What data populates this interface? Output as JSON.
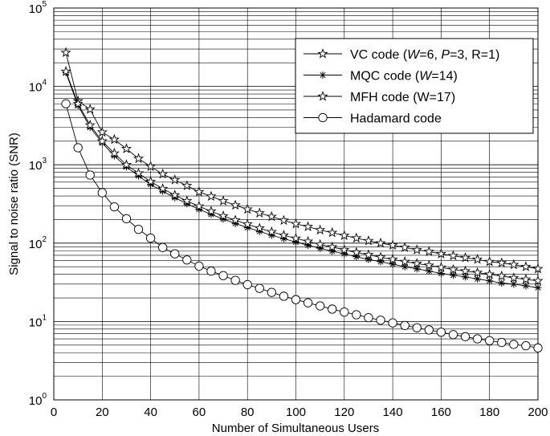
{
  "chart_data": {
    "type": "line",
    "title": "",
    "xlabel": "Number of Simultaneous Users",
    "ylabel": "Signal to noise ratio (SNR)",
    "xlim": [
      0,
      200
    ],
    "ylim": [
      1,
      100000
    ],
    "yscale": "log",
    "grid": true,
    "legend_position": "top-right",
    "x_ticks": [
      {
        "value": 0,
        "label": "0"
      },
      {
        "value": 20,
        "label": "20"
      },
      {
        "value": 40,
        "label": "40"
      },
      {
        "value": 60,
        "label": "60"
      },
      {
        "value": 80,
        "label": "80"
      },
      {
        "value": 100,
        "label": "100"
      },
      {
        "value": 120,
        "label": "120"
      },
      {
        "value": 140,
        "label": "140"
      },
      {
        "value": 160,
        "label": "160"
      },
      {
        "value": 180,
        "label": "180"
      },
      {
        "value": 200,
        "label": "200"
      }
    ],
    "y_ticks": [
      {
        "value": 1,
        "base": "10",
        "exp": "0"
      },
      {
        "value": 10,
        "base": "10",
        "exp": "1"
      },
      {
        "value": 100,
        "base": "10",
        "exp": "2"
      },
      {
        "value": 1000,
        "base": "10",
        "exp": "3"
      },
      {
        "value": 10000,
        "base": "10",
        "exp": "4"
      },
      {
        "value": 100000,
        "base": "10",
        "exp": "5"
      }
    ],
    "x": [
      5,
      10,
      15,
      20,
      25,
      30,
      35,
      40,
      45,
      50,
      55,
      60,
      65,
      70,
      75,
      80,
      85,
      90,
      95,
      100,
      105,
      110,
      115,
      120,
      125,
      130,
      135,
      140,
      145,
      150,
      155,
      160,
      165,
      170,
      175,
      180,
      185,
      190,
      195,
      200
    ],
    "series": [
      {
        "name": "VC code (W=6, P=3, R=1)",
        "legend_parts": [
          {
            "t": "VC code (",
            "i": false
          },
          {
            "t": "W",
            "i": true
          },
          {
            "t": "=6, ",
            "i": false
          },
          {
            "t": "P",
            "i": true
          },
          {
            "t": "=3, R=1)",
            "i": false
          }
        ],
        "marker": "star",
        "values": [
          27000,
          6500,
          5100,
          2600,
          2100,
          1600,
          1200,
          950,
          760,
          640,
          540,
          450,
          395,
          345,
          305,
          270,
          242,
          218,
          195,
          176,
          162,
          147,
          136,
          125,
          116,
          107,
          100,
          94,
          88,
          82,
          78,
          73,
          69,
          65,
          62,
          58,
          56,
          53,
          50,
          47
        ]
      },
      {
        "name": "MQC code (W=14)",
        "legend_parts": [
          {
            "t": "MQC code (",
            "i": false
          },
          {
            "t": "W",
            "i": true
          },
          {
            "t": "=14)",
            "i": false
          }
        ],
        "marker": "asterisk",
        "values": [
          15000,
          5700,
          3000,
          1900,
          1300,
          940,
          720,
          560,
          460,
          380,
          318,
          270,
          233,
          203,
          178,
          158,
          141,
          126,
          114,
          103,
          94,
          86,
          79,
          73,
          67,
          62,
          58,
          54,
          50,
          47,
          44,
          41,
          39,
          37,
          35,
          33,
          31,
          30,
          28.5,
          27
        ]
      },
      {
        "name": "MFH code (W=17)",
        "legend_parts": [
          {
            "t": "MFH code (W=17)",
            "i": false
          }
        ],
        "marker": "star",
        "values": [
          15500,
          6000,
          3200,
          2000,
          1400,
          1000,
          780,
          610,
          495,
          410,
          345,
          295,
          255,
          222,
          196,
          174,
          155,
          139,
          126,
          115,
          105,
          96,
          89,
          82,
          76,
          71,
          66,
          62,
          58,
          55,
          52,
          49,
          46,
          44,
          42,
          40,
          38,
          36,
          34.5,
          33
        ]
      },
      {
        "name": "Hadamard code",
        "legend_parts": [
          {
            "t": "Hadamard code",
            "i": false
          }
        ],
        "marker": "circle",
        "values": [
          6000,
          1650,
          740,
          440,
          290,
          205,
          150,
          116,
          88,
          73,
          61,
          51,
          44,
          38.5,
          33.5,
          29.5,
          26.5,
          23.5,
          21,
          19,
          17.3,
          15.8,
          14.4,
          13.2,
          12.2,
          11.2,
          10.4,
          9.6,
          8.9,
          8.3,
          7.8,
          7.3,
          6.8,
          6.4,
          6.0,
          5.7,
          5.4,
          5.1,
          4.9,
          4.6
        ]
      }
    ]
  }
}
